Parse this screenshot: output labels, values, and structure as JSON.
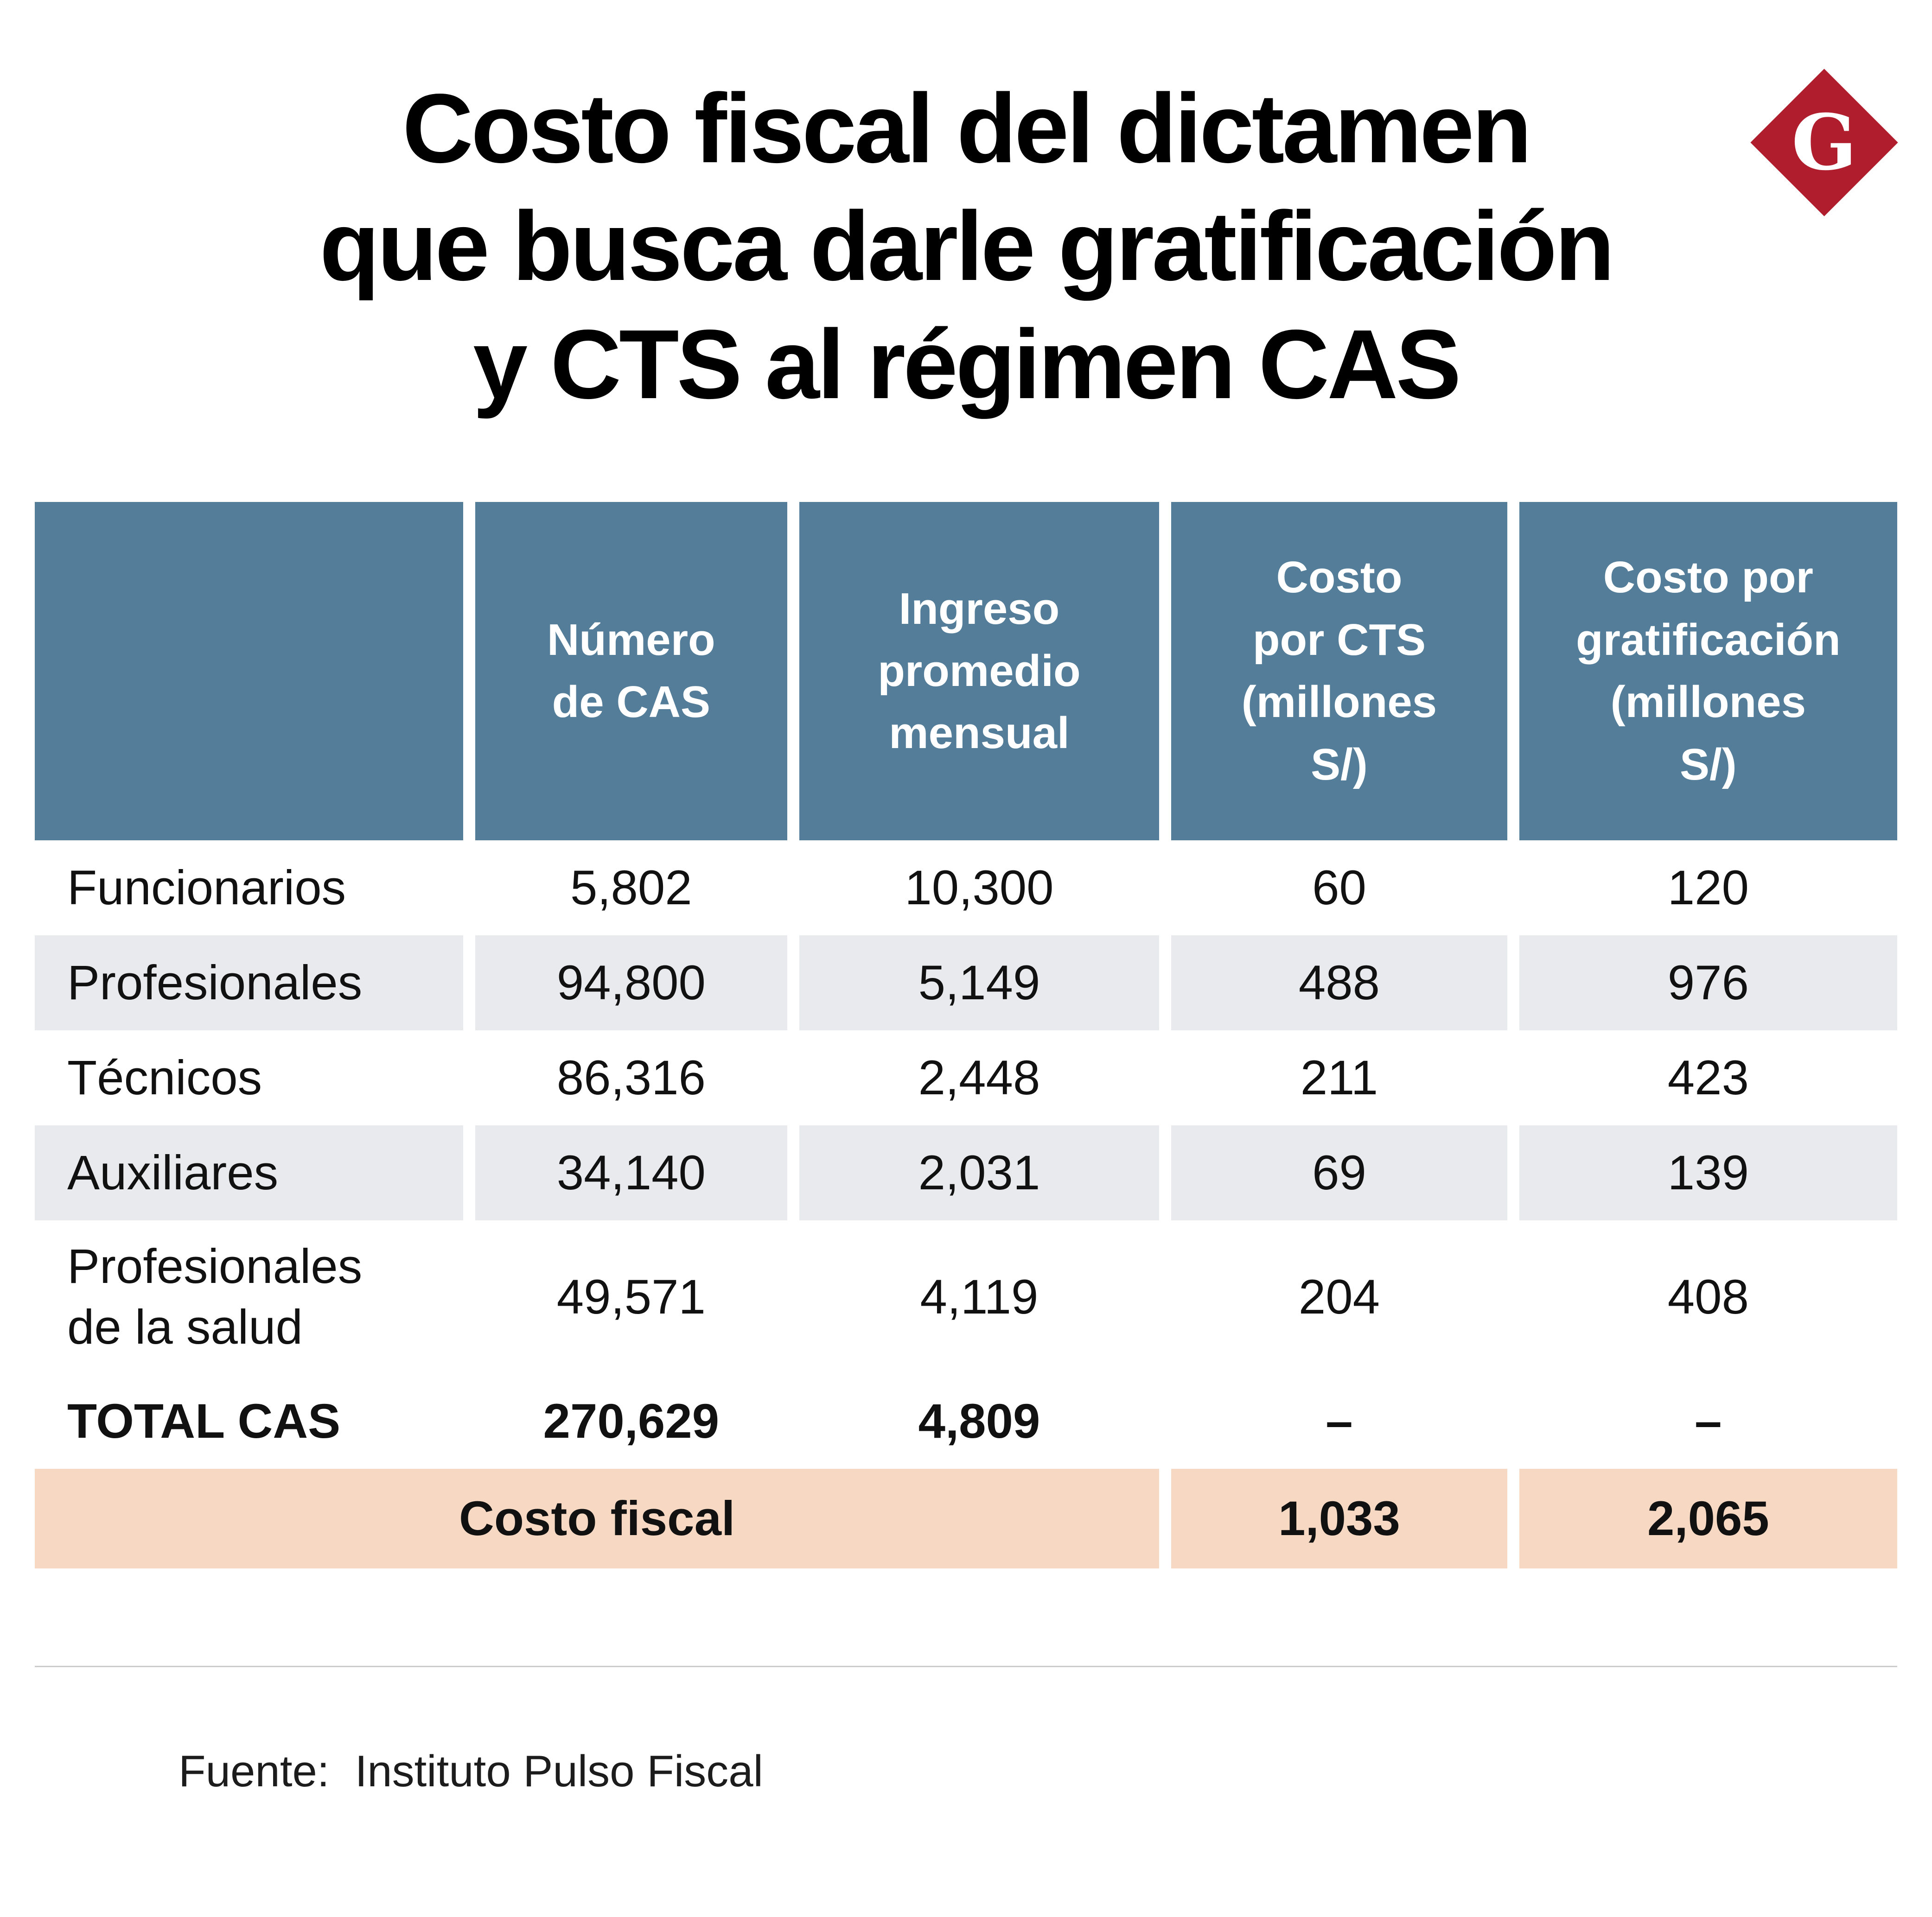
{
  "logo": {
    "letter": "G"
  },
  "title": {
    "line1": "Costo fiscal del dictamen",
    "line2": "que busca darle gratificación",
    "line3": "y CTS al régimen CAS"
  },
  "table": {
    "headers": {
      "category": "",
      "numero": "Número\nde CAS",
      "ingreso": "Ingreso\npromedio\nmensual",
      "cts": "Costo\npor CTS\n(millones\nS/)",
      "gratificacion": "Costo por\ngratificación\n(millones\nS/)"
    },
    "rows": [
      {
        "name": "Funcionarios",
        "numero": "5,802",
        "ingreso": "10,300",
        "cts": "60",
        "gratificacion": "120"
      },
      {
        "name": "Profesionales",
        "numero": "94,800",
        "ingreso": "5,149",
        "cts": "488",
        "gratificacion": "976"
      },
      {
        "name": "Técnicos",
        "numero": "86,316",
        "ingreso": "2,448",
        "cts": "211",
        "gratificacion": "423"
      },
      {
        "name": "Auxiliares",
        "numero": "34,140",
        "ingreso": "2,031",
        "cts": "69",
        "gratificacion": "139"
      },
      {
        "name": "Profesionales\nde la salud",
        "numero": "49,571",
        "ingreso": "4,119",
        "cts": "204",
        "gratificacion": "408"
      }
    ],
    "total_row": {
      "name": "TOTAL CAS",
      "numero": "270,629",
      "ingreso": "4,809",
      "cts": "–",
      "gratificacion": "–"
    },
    "fiscal_row": {
      "label": "Costo fiscal",
      "cts": "1,033",
      "gratificacion": "2,065"
    }
  },
  "footer": {
    "source_label": "Fuente:",
    "source_value": "Instituto Pulso Fiscal"
  },
  "colors": {
    "header_blue": "#537d98",
    "row_gray": "#e8eaed",
    "fiscal_peach": "#f6d8c3",
    "logo_red": "#b01e2e"
  },
  "chart_data": {
    "type": "table",
    "title": "Costo fiscal del dictamen que busca darle gratificación y CTS al régimen CAS",
    "columns": [
      "",
      "Número de CAS",
      "Ingreso promedio mensual",
      "Costo por CTS (millones S/)",
      "Costo por gratificación (millones S/)"
    ],
    "rows": [
      [
        "Funcionarios",
        5802,
        10300,
        60,
        120
      ],
      [
        "Profesionales",
        94800,
        5149,
        488,
        976
      ],
      [
        "Técnicos",
        86316,
        2448,
        211,
        423
      ],
      [
        "Auxiliares",
        34140,
        2031,
        69,
        139
      ],
      [
        "Profesionales de la salud",
        49571,
        4119,
        204,
        408
      ],
      [
        "TOTAL CAS",
        270629,
        4809,
        null,
        null
      ],
      [
        "Costo fiscal",
        null,
        null,
        1033,
        2065
      ]
    ],
    "source": "Fuente: Instituto Pulso Fiscal"
  }
}
